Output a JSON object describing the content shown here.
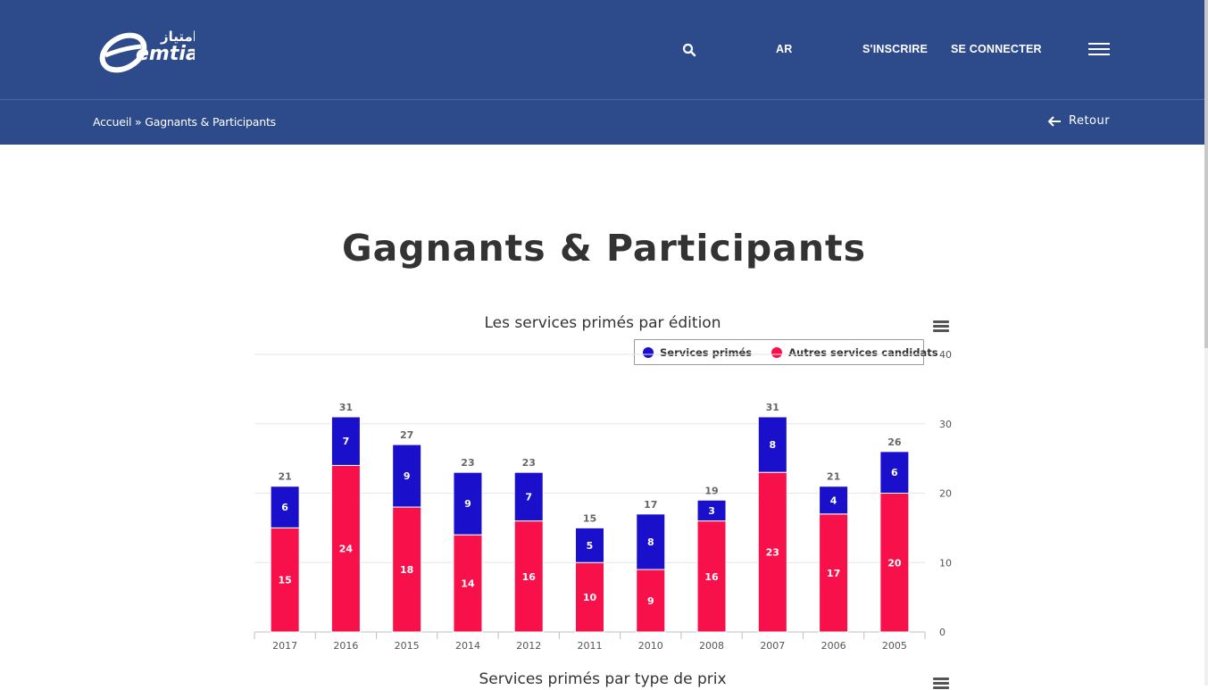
{
  "header": {
    "logo_text": "emtiaz",
    "logo_arabic": "امتياز",
    "nav": {
      "search_icon": "search-icon",
      "lang": "AR",
      "register": "S'INSCRIRE",
      "login": "SE CONNECTER",
      "menu_icon": "hamburger-menu-icon"
    }
  },
  "breadcrumb": {
    "home": "Accueil",
    "separator": "»",
    "current": "Gagnants & Participants"
  },
  "back": {
    "label": "Retour",
    "icon": "arrow-left-icon"
  },
  "page_title": "Gagnants & Participants",
  "colors": {
    "brand": "#2d4b8b",
    "series_primes": "#1a10cc",
    "series_autres": "#f7104a"
  },
  "chart_menu_icon": "chart-context-menu-icon",
  "chart_data": [
    {
      "type": "bar",
      "stacked": true,
      "title": "Les services primés par édition",
      "categories": [
        "2017",
        "2016",
        "2015",
        "2014",
        "2012",
        "2011",
        "2010",
        "2008",
        "2007",
        "2006",
        "2005"
      ],
      "series": [
        {
          "name": "Services primés",
          "color": "#1a10cc",
          "values": [
            6,
            7,
            9,
            9,
            7,
            5,
            8,
            3,
            8,
            4,
            6
          ]
        },
        {
          "name": "Autres services candidats",
          "color": "#f7104a",
          "values": [
            15,
            24,
            18,
            14,
            16,
            10,
            9,
            16,
            23,
            17,
            20
          ]
        }
      ],
      "totals": [
        21,
        31,
        27,
        23,
        23,
        15,
        17,
        19,
        31,
        21,
        26
      ],
      "ylim": [
        0,
        40
      ],
      "yticks": [
        0,
        10,
        20,
        30,
        40
      ],
      "y_axis_side": "right",
      "legend": "top-right",
      "grid": true
    },
    {
      "type": "bar",
      "title": "Services primés par type de prix"
    }
  ]
}
